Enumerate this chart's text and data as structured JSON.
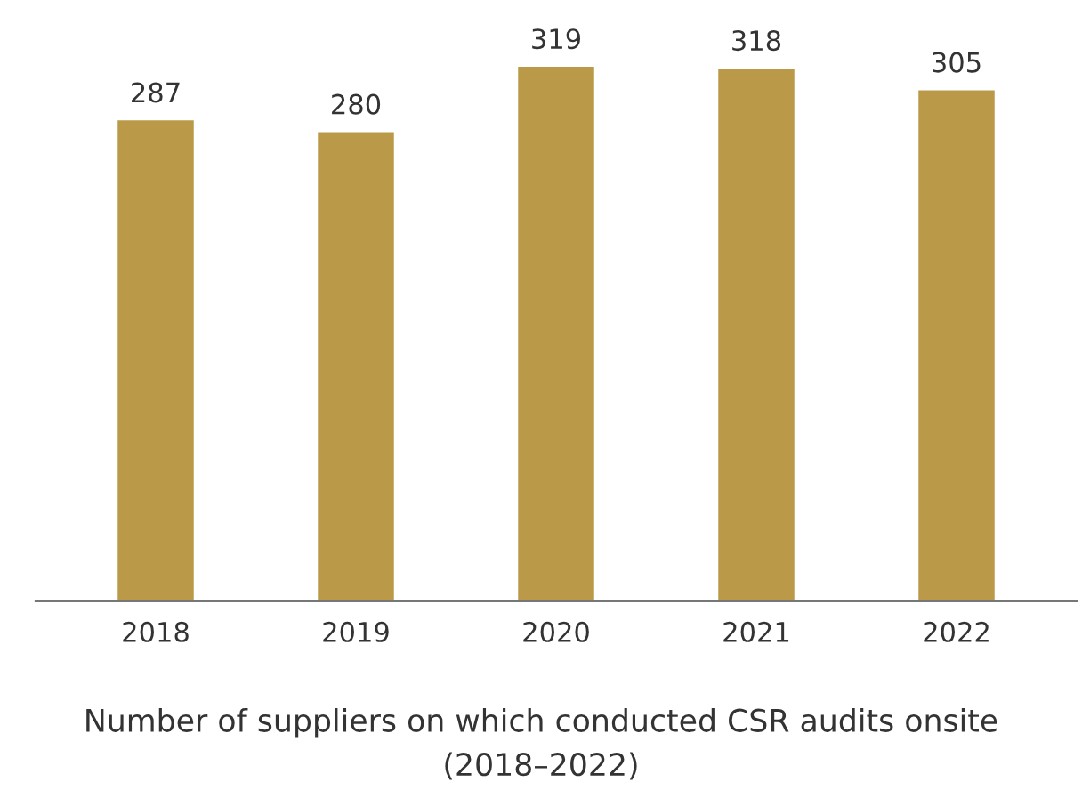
{
  "chart_data": {
    "type": "bar",
    "categories": [
      "2018",
      "2019",
      "2020",
      "2021",
      "2022"
    ],
    "values": [
      287,
      280,
      319,
      318,
      305
    ],
    "color": "#ba9a48",
    "data_labels": true,
    "grid": false,
    "legend": false,
    "annotations": [
      "Number of suppliers on which conducted CSR audits onsite (2018–2022)"
    ]
  }
}
